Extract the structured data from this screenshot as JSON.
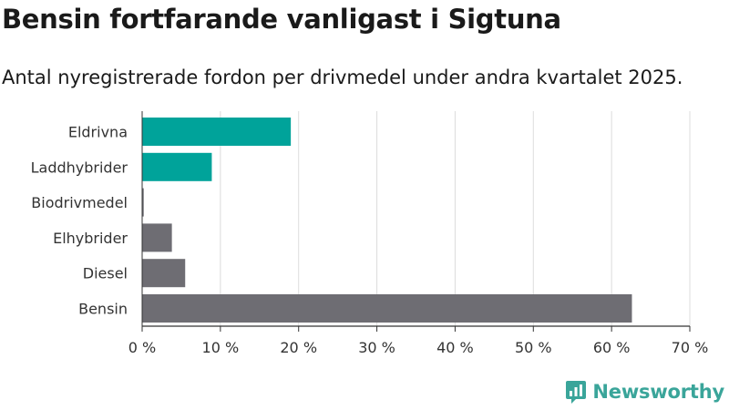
{
  "title": "Bensin fortfarande vanligast i Sigtuna",
  "subtitle": "Antal nyregistrerade fordon per drivmedel under andra kvartalet 2025.",
  "brand": {
    "name": "Newsworthy",
    "icon": "newsworthy-logo-icon",
    "color": "#3aa59a"
  },
  "colors": {
    "highlight": "#00a39a",
    "default": "#6e6d73",
    "grid": "#dcdcdc",
    "axis": "#333333"
  },
  "chart_data": {
    "type": "bar",
    "orientation": "horizontal",
    "categories": [
      "Eldrivna",
      "Laddhybrider",
      "Biodrivmedel",
      "Elhybrider",
      "Diesel",
      "Bensin"
    ],
    "values": [
      19.0,
      8.9,
      0.2,
      3.8,
      5.5,
      62.6
    ],
    "highlighted": [
      true,
      true,
      false,
      false,
      false,
      false
    ],
    "xlim": [
      0,
      70
    ],
    "x_ticks": [
      0,
      10,
      20,
      30,
      40,
      50,
      60,
      70
    ],
    "x_tick_labels": [
      "0 %",
      "10 %",
      "20 %",
      "30 %",
      "40 %",
      "50 %",
      "60 %",
      "70 %"
    ],
    "grid": true,
    "legend": "none"
  }
}
